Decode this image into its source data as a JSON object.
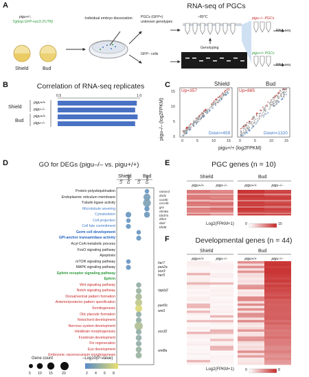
{
  "panels": {
    "a": {
      "letter": "A",
      "title": "RNA-seq of PGCs",
      "genotype_line1": "pigu+/-;",
      "genotype_line2": "Tg(kop:GFP-nos3-3'UTR)",
      "stage_shield": "Shield",
      "stage_bud": "Bud",
      "dissociation": "Individual embryo dissociation",
      "pgc_label_1": "PGCs (GFP+)",
      "pgc_label_2": "unknown genotypes",
      "gfp_neg": "GFP– cells",
      "temp": "–80°C",
      "genotyping": "Genotyping",
      "pgc_mut": "pigu–/– PGCs",
      "pgc_wt": "pigu+/+ PGCs",
      "rnaseq_1": "RNA-seq",
      "rnaseq_2": "RNA-seq"
    },
    "b": {
      "letter": "B",
      "title": "Correlation of RNA-seq replicates",
      "axis_start": "0.5",
      "axis_end": "1.0",
      "group_shield": "Shield",
      "group_bud": "Bud",
      "rows": [
        "pigu+/+",
        "pigu–/–",
        "pigu+/+",
        "pigu–/–"
      ],
      "values": [
        0.98,
        0.97,
        0.985,
        0.97
      ],
      "bar_color": "#4a72c4"
    },
    "c": {
      "letter": "C",
      "stage_shield": "Shield",
      "stage_bud": "Bud",
      "up_shield": "Up=357",
      "down_shield": "Down=459",
      "up_bud": "Up=885",
      "down_bud": "Down=1320",
      "ylabel": "pigu–/– (log2FPKM)",
      "xlabel": "pigu+/+ (log2FPKM)",
      "ticks": [
        "0",
        "5",
        "10",
        "15"
      ],
      "up_color": "#c62828",
      "down_color": "#3f79c8"
    },
    "d": {
      "letter": "D",
      "title": "GO for DEGs (pigu–/– vs. pigu+/+)",
      "col_group_shield": "Shield",
      "col_group_bud": "Bud",
      "col_up": "Up",
      "col_down": "Down",
      "terms": [
        {
          "label": "Protein polyubiquitination",
          "color": "#222222"
        },
        {
          "label": "Endoplasmic reticulum membrane",
          "color": "#222222"
        },
        {
          "label": "Tubulin ligase activity",
          "color": "#222222"
        },
        {
          "label": "Microtubule severing",
          "color": "#3f79c8"
        },
        {
          "label": "Cytoskeleton",
          "color": "#3f79c8"
        },
        {
          "label": "Cell projection",
          "color": "#3f79c8"
        },
        {
          "label": "Cell fate commitment",
          "color": "#3f79c8"
        },
        {
          "label": "Germ cell development",
          "color": "#1f5fbf",
          "bold": true
        },
        {
          "label": "GPI-anchor transamidase activity",
          "color": "#1f5fbf",
          "bold": true
        },
        {
          "label": "Acyl-CoA metabolic process",
          "color": "#222222"
        },
        {
          "label": "FoxO signaling pathway",
          "color": "#222222"
        },
        {
          "label": "Apoptosis",
          "color": "#222222"
        },
        {
          "label": "mTOR signaling pathway",
          "color": "#222222"
        },
        {
          "label": "MAPK signaling pathway",
          "color": "#222222"
        },
        {
          "label": "Ephrin receptor signaling pathway",
          "color": "#2e9a3a",
          "bold": true
        },
        {
          "label": "Ephrin",
          "color": "#2e9a3a",
          "bold": true
        },
        {
          "label": "Wnt signaling pathway",
          "color": "#c62828"
        },
        {
          "label": "Notch signaling pathway",
          "color": "#c62828"
        },
        {
          "label": "Dorsal/ventral pattern formation",
          "color": "#c62828"
        },
        {
          "label": "Anterior/posterior pattern specification",
          "color": "#c62828"
        },
        {
          "label": "Somitogenesis",
          "color": "#c62828"
        },
        {
          "label": "Otic placode formation",
          "color": "#c62828"
        },
        {
          "label": "Notochord development",
          "color": "#c62828"
        },
        {
          "label": "Nervous system development",
          "color": "#c62828"
        },
        {
          "label": "Hindbrain morphogenesis",
          "color": "#c62828"
        },
        {
          "label": "Forebrain development",
          "color": "#c62828"
        },
        {
          "label": "Fin regeneration",
          "color": "#c62828"
        },
        {
          "label": "Eye development",
          "color": "#c62828"
        },
        {
          "label": "Embryonic viscerocranium morphogenesis",
          "color": "#c62828"
        }
      ],
      "bubbles": [
        {
          "term": 0,
          "col": 3,
          "size": 6,
          "level": 0.1
        },
        {
          "term": 1,
          "col": 3,
          "size": 14,
          "level": 0.2
        },
        {
          "term": 2,
          "col": 3,
          "size": 18,
          "level": 0.25
        },
        {
          "term": 3,
          "col": 3,
          "size": 8,
          "level": 0.1
        },
        {
          "term": 4,
          "col": 1,
          "size": 9,
          "level": 0.1
        },
        {
          "term": 4,
          "col": 3,
          "size": 10,
          "level": 0.15
        },
        {
          "term": 5,
          "col": 1,
          "size": 6,
          "level": 0.1
        },
        {
          "term": 6,
          "col": 1,
          "size": 7,
          "level": 0.1
        },
        {
          "term": 7,
          "col": 2,
          "size": 6,
          "level": 0.1
        },
        {
          "term": 8,
          "col": 2,
          "size": 7,
          "level": 0.1
        },
        {
          "term": 12,
          "col": 1,
          "size": 6,
          "level": 0.1
        },
        {
          "term": 13,
          "col": 1,
          "size": 7,
          "level": 0.1
        },
        {
          "term": 16,
          "col": 2,
          "size": 8,
          "level": 0.4
        },
        {
          "term": 17,
          "col": 2,
          "size": 9,
          "level": 0.45
        },
        {
          "term": 18,
          "col": 2,
          "size": 12,
          "level": 0.55
        },
        {
          "term": 19,
          "col": 2,
          "size": 14,
          "level": 0.7
        },
        {
          "term": 20,
          "col": 2,
          "size": 15,
          "level": 0.9
        },
        {
          "term": 21,
          "col": 2,
          "size": 9,
          "level": 0.4
        },
        {
          "term": 22,
          "col": 2,
          "size": 9,
          "level": 0.4
        },
        {
          "term": 23,
          "col": 2,
          "size": 20,
          "level": 0.6
        },
        {
          "term": 24,
          "col": 2,
          "size": 9,
          "level": 0.4
        },
        {
          "term": 25,
          "col": 2,
          "size": 10,
          "level": 0.4
        },
        {
          "term": 26,
          "col": 2,
          "size": 9,
          "level": 0.4
        },
        {
          "term": 27,
          "col": 2,
          "size": 10,
          "level": 0.45
        },
        {
          "term": 28,
          "col": 2,
          "size": 11,
          "level": 0.45
        }
      ],
      "legend_size_title": "Gene count",
      "legend_sizes": [
        "5",
        "10",
        "15",
        "20"
      ],
      "legend_color_title": "–Log10(P-value)",
      "legend_color_ticks": [
        "2",
        "4",
        "6",
        "8"
      ]
    },
    "e": {
      "letter": "E",
      "title": "PGC genes (n = 10)",
      "group_shield": "Shield",
      "group_bud": "Bud",
      "col_labels": [
        "pigu+/+",
        "pigu–/–",
        "pigu+/+",
        "pigu–/–"
      ],
      "genes": [
        "nanos3",
        "dnd1",
        "ca15b",
        "cxcr4b",
        "gra",
        "rbm8a",
        "tdrd7a",
        "ddx4",
        "dazl",
        "tdrd6"
      ],
      "legend_label": "Log2(FPKM+1)",
      "legend_min": "0",
      "legend_max": "15"
    },
    "f": {
      "letter": "F",
      "title": "Developmental genes (n = 44)",
      "group_shield": "Shield",
      "group_bud": "Bud",
      "col_labels": [
        "pigu+/+",
        "pigu–/–",
        "pigu+/+",
        "pigu–/–"
      ],
      "genes": [
        "her7",
        "pax2a",
        "sox3",
        "her5",
        "ripply2",
        "pax6b",
        "wnt1",
        "sox32",
        "wnt8a"
      ],
      "legend_label": "Log2(FPKM+1)",
      "legend_min": "0",
      "legend_max": "8"
    }
  }
}
